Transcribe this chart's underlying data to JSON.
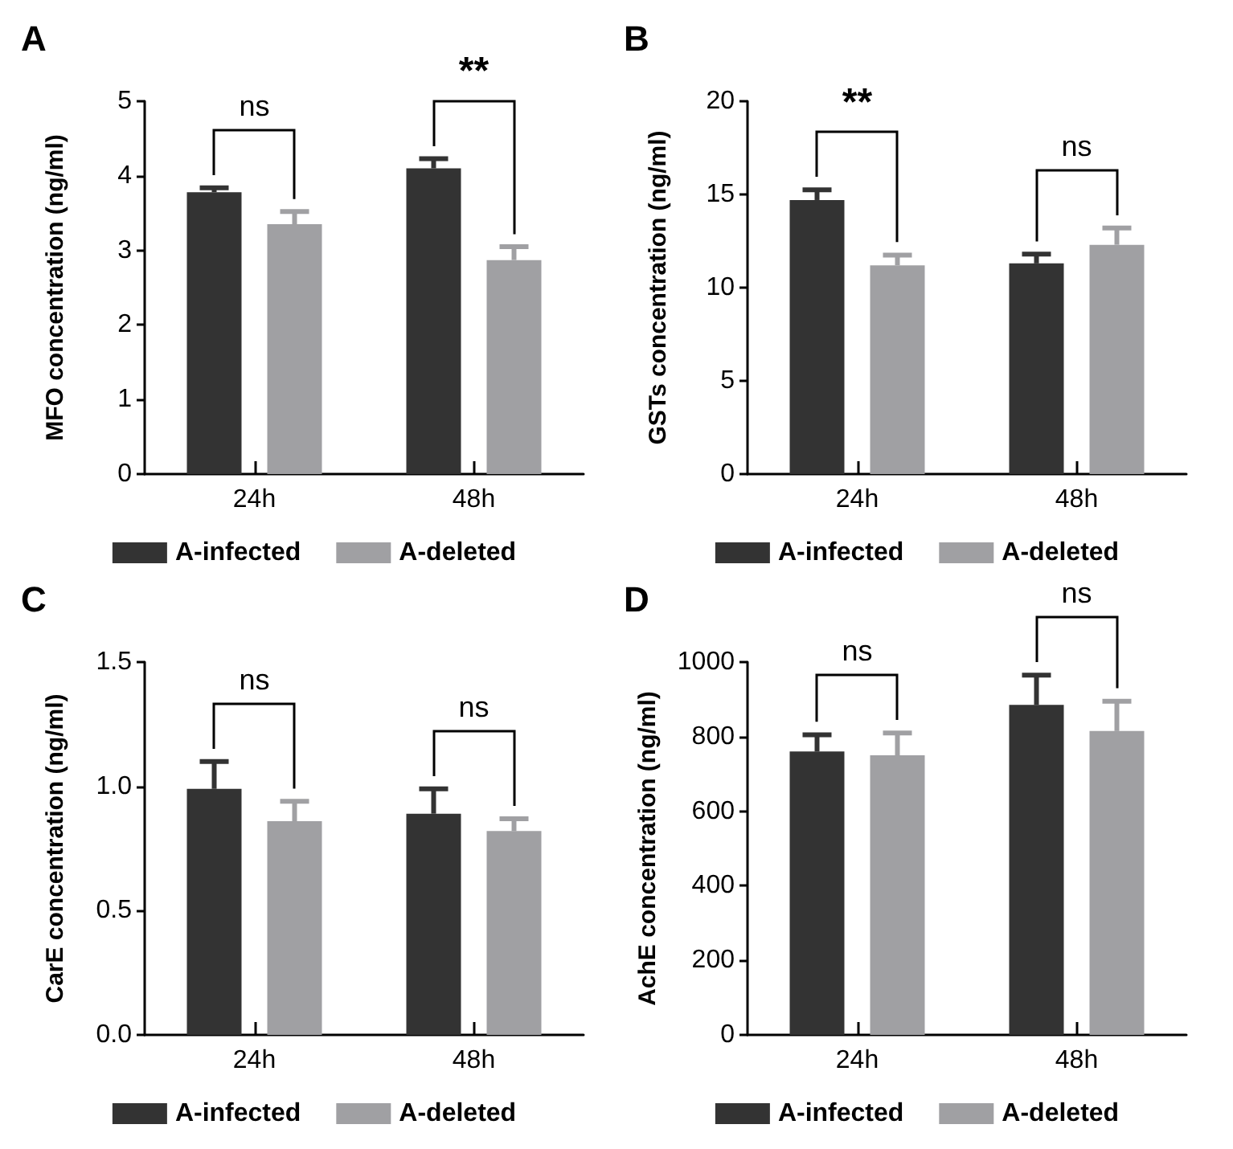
{
  "chart_data": [
    {
      "type": "bar",
      "title": "A",
      "ylabel": "MFO concentration (ng/ml)",
      "categories": [
        "24h",
        "48h"
      ],
      "series": [
        {
          "name": "A-infected",
          "color": "#333333",
          "values": [
            3.78,
            4.1
          ],
          "errors": [
            0.06,
            0.13
          ]
        },
        {
          "name": "A-deleted",
          "color": "#a0a0a3",
          "values": [
            3.35,
            2.87
          ],
          "errors": [
            0.17,
            0.18
          ]
        }
      ],
      "ylim": [
        0,
        5
      ],
      "yticks": [
        0,
        1,
        2,
        3,
        4,
        5
      ],
      "grid": false,
      "legend": "bottom",
      "annotations": [
        "ns",
        "**"
      ]
    },
    {
      "type": "bar",
      "title": "B",
      "ylabel": "GSTs concentration (ng/ml)",
      "categories": [
        "24h",
        "48h"
      ],
      "series": [
        {
          "name": "A-infected",
          "color": "#333333",
          "values": [
            14.7,
            11.3
          ],
          "errors": [
            0.55,
            0.5
          ]
        },
        {
          "name": "A-deleted",
          "color": "#a0a0a3",
          "values": [
            11.2,
            12.3
          ],
          "errors": [
            0.55,
            0.9
          ]
        }
      ],
      "ylim": [
        0,
        20
      ],
      "yticks": [
        0,
        5,
        10,
        15,
        20
      ],
      "grid": false,
      "legend": "bottom",
      "annotations": [
        "**",
        "ns"
      ]
    },
    {
      "type": "bar",
      "title": "C",
      "ylabel": "CarE concentration (ng/ml)",
      "categories": [
        "24h",
        "48h"
      ],
      "series": [
        {
          "name": "A-infected",
          "color": "#333333",
          "values": [
            0.99,
            0.89
          ],
          "errors": [
            0.11,
            0.1
          ]
        },
        {
          "name": "A-deleted",
          "color": "#a0a0a3",
          "values": [
            0.86,
            0.82
          ],
          "errors": [
            0.08,
            0.05
          ]
        }
      ],
      "ylim": [
        0,
        1.5
      ],
      "yticks": [
        {
          "value": 0,
          "label": "0.0"
        },
        0.5,
        {
          "value": 1,
          "label": "1.0"
        },
        1.5
      ],
      "grid": false,
      "legend": "bottom",
      "annotations": [
        "ns",
        "ns"
      ]
    },
    {
      "type": "bar",
      "title": "D",
      "ylabel": "AchE concentration (ng/ml)",
      "categories": [
        "24h",
        "48h"
      ],
      "series": [
        {
          "name": "A-infected",
          "color": "#333333",
          "values": [
            760,
            885
          ],
          "errors": [
            45,
            80
          ]
        },
        {
          "name": "A-deleted",
          "color": "#a0a0a3",
          "values": [
            750,
            815
          ],
          "errors": [
            60,
            80
          ]
        }
      ],
      "ylim": [
        0,
        1000
      ],
      "yticks": [
        0,
        200,
        400,
        600,
        800,
        1000
      ],
      "grid": false,
      "legend": "bottom",
      "annotations": [
        "ns",
        "ns"
      ]
    }
  ]
}
